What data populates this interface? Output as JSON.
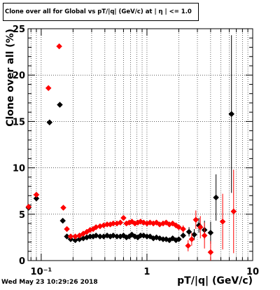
{
  "title": "Clone  over all for Global vs pT/|q| (GeV/c) at | η | <= 1.0",
  "timestamp": "Wed May 23 10:29:26 2018",
  "chart_data": {
    "type": "scatter",
    "xlabel": "pT/|q| (GeV/c)",
    "ylabel": "Clone  over all (%)",
    "xscale": "log",
    "xlim": [
      0.075,
      10
    ],
    "ylim": [
      0,
      25
    ],
    "x_ticks": [
      {
        "value": 0.1,
        "label": "10⁻¹"
      },
      {
        "value": 1,
        "label": "1"
      },
      {
        "value": 10,
        "label": "10"
      }
    ],
    "y_ticks": [
      0,
      5,
      10,
      15,
      20,
      25
    ],
    "grid": true,
    "series": [
      {
        "color": "#000000",
        "points": [
          {
            "x": 0.076,
            "y": 5.7,
            "xerr": [
              0.003,
              0.003
            ],
            "yerr": 0.15
          },
          {
            "x": 0.09,
            "y": 6.7,
            "xerr": [
              0.005,
              0.005
            ],
            "yerr": 0.15
          },
          {
            "x": 0.12,
            "y": 14.9,
            "xerr": [
              0.006,
              0.006
            ],
            "yerr": 0.2
          },
          {
            "x": 0.15,
            "y": 16.8,
            "xerr": [
              0.004,
              0.004
            ],
            "yerr": 0.2
          },
          {
            "x": 0.16,
            "y": 4.3,
            "xerr": [
              0.004,
              0.004
            ],
            "yerr": 0.15
          },
          {
            "x": 0.175,
            "y": 2.6
          },
          {
            "x": 0.19,
            "y": 2.3
          },
          {
            "x": 0.21,
            "y": 2.2
          },
          {
            "x": 0.23,
            "y": 2.3
          },
          {
            "x": 0.25,
            "y": 2.4
          },
          {
            "x": 0.27,
            "y": 2.5
          },
          {
            "x": 0.29,
            "y": 2.6
          },
          {
            "x": 0.31,
            "y": 2.6
          },
          {
            "x": 0.33,
            "y": 2.7
          },
          {
            "x": 0.36,
            "y": 2.6
          },
          {
            "x": 0.39,
            "y": 2.6
          },
          {
            "x": 0.42,
            "y": 2.7
          },
          {
            "x": 0.45,
            "y": 2.6
          },
          {
            "x": 0.48,
            "y": 2.7
          },
          {
            "x": 0.52,
            "y": 2.6
          },
          {
            "x": 0.56,
            "y": 2.6
          },
          {
            "x": 0.6,
            "y": 2.7
          },
          {
            "x": 0.64,
            "y": 2.5
          },
          {
            "x": 0.68,
            "y": 2.6
          },
          {
            "x": 0.72,
            "y": 2.8
          },
          {
            "x": 0.77,
            "y": 2.6
          },
          {
            "x": 0.82,
            "y": 2.5
          },
          {
            "x": 0.87,
            "y": 2.7
          },
          {
            "x": 0.93,
            "y": 2.7
          },
          {
            "x": 1.0,
            "y": 2.6
          },
          {
            "x": 1.07,
            "y": 2.6
          },
          {
            "x": 1.15,
            "y": 2.4
          },
          {
            "x": 1.23,
            "y": 2.5
          },
          {
            "x": 1.32,
            "y": 2.4
          },
          {
            "x": 1.42,
            "y": 2.3
          },
          {
            "x": 1.52,
            "y": 2.3
          },
          {
            "x": 1.63,
            "y": 2.2
          },
          {
            "x": 1.75,
            "y": 2.4
          },
          {
            "x": 1.88,
            "y": 2.2
          },
          {
            "x": 2.0,
            "y": 2.3
          },
          {
            "x": 2.2,
            "y": 2.7,
            "yerr": 0.3
          },
          {
            "x": 2.5,
            "y": 3.1,
            "yerr": 0.5
          },
          {
            "x": 2.8,
            "y": 2.8,
            "yerr": 0.6
          },
          {
            "x": 3.1,
            "y": 3.8,
            "yerr": 0.8
          },
          {
            "x": 3.5,
            "y": 3.3,
            "yerr": 1.0
          },
          {
            "x": 4.0,
            "y": 3.0,
            "yerr": 1.2
          },
          {
            "x": 4.5,
            "y": 6.8,
            "yerr": 2.5
          },
          {
            "x": 6.3,
            "y": 15.8,
            "yerr": 8.5
          }
        ]
      },
      {
        "color": "#ff0000",
        "points": [
          {
            "x": 0.076,
            "y": 5.8,
            "xerr": [
              0.003,
              0.003
            ],
            "yerr": 0.15
          },
          {
            "x": 0.09,
            "y": 7.1,
            "xerr": [
              0.006,
              0.006
            ],
            "yerr": 0.15
          },
          {
            "x": 0.117,
            "y": 18.6,
            "xerr": [
              0.006,
              0.006
            ],
            "yerr": 0.2
          },
          {
            "x": 0.148,
            "y": 23.1,
            "xerr": [
              0.004,
              0.004
            ],
            "yerr": 0.2
          },
          {
            "x": 0.162,
            "y": 5.7,
            "xerr": [
              0.004,
              0.004
            ],
            "yerr": 0.15
          },
          {
            "x": 0.175,
            "y": 3.4
          },
          {
            "x": 0.19,
            "y": 2.6
          },
          {
            "x": 0.21,
            "y": 2.6
          },
          {
            "x": 0.23,
            "y": 2.7
          },
          {
            "x": 0.25,
            "y": 2.9
          },
          {
            "x": 0.27,
            "y": 3.1
          },
          {
            "x": 0.29,
            "y": 3.3
          },
          {
            "x": 0.31,
            "y": 3.4
          },
          {
            "x": 0.33,
            "y": 3.6
          },
          {
            "x": 0.36,
            "y": 3.7
          },
          {
            "x": 0.39,
            "y": 3.8
          },
          {
            "x": 0.42,
            "y": 3.9
          },
          {
            "x": 0.45,
            "y": 3.9
          },
          {
            "x": 0.48,
            "y": 4.0
          },
          {
            "x": 0.52,
            "y": 4.0
          },
          {
            "x": 0.56,
            "y": 4.1
          },
          {
            "x": 0.6,
            "y": 4.6
          },
          {
            "x": 0.64,
            "y": 4.0
          },
          {
            "x": 0.68,
            "y": 4.1
          },
          {
            "x": 0.72,
            "y": 4.2
          },
          {
            "x": 0.77,
            "y": 4.0
          },
          {
            "x": 0.82,
            "y": 4.1
          },
          {
            "x": 0.87,
            "y": 4.2
          },
          {
            "x": 0.93,
            "y": 4.1
          },
          {
            "x": 1.0,
            "y": 4.0
          },
          {
            "x": 1.07,
            "y": 4.1
          },
          {
            "x": 1.15,
            "y": 4.0
          },
          {
            "x": 1.23,
            "y": 4.1
          },
          {
            "x": 1.32,
            "y": 3.9
          },
          {
            "x": 1.42,
            "y": 4.0
          },
          {
            "x": 1.52,
            "y": 4.1
          },
          {
            "x": 1.63,
            "y": 3.9
          },
          {
            "x": 1.75,
            "y": 4.0
          },
          {
            "x": 1.88,
            "y": 3.8
          },
          {
            "x": 2.0,
            "y": 3.6
          },
          {
            "x": 2.2,
            "y": 3.4,
            "yerr": 0.4
          },
          {
            "x": 2.45,
            "y": 1.6,
            "yerr": 0.6
          },
          {
            "x": 2.65,
            "y": 2.3,
            "yerr": 0.7
          },
          {
            "x": 2.9,
            "y": 4.4,
            "yerr": 1.0
          },
          {
            "x": 3.2,
            "y": 3.6,
            "yerr": 1.2
          },
          {
            "x": 3.5,
            "y": 2.7,
            "yerr": 1.4
          },
          {
            "x": 4.0,
            "y": 0.9,
            "yerr": 1.2
          },
          {
            "x": 5.2,
            "y": 4.2,
            "yerr": 3.0
          },
          {
            "x": 6.6,
            "y": 5.3,
            "yerr": 4.5
          }
        ]
      }
    ]
  }
}
